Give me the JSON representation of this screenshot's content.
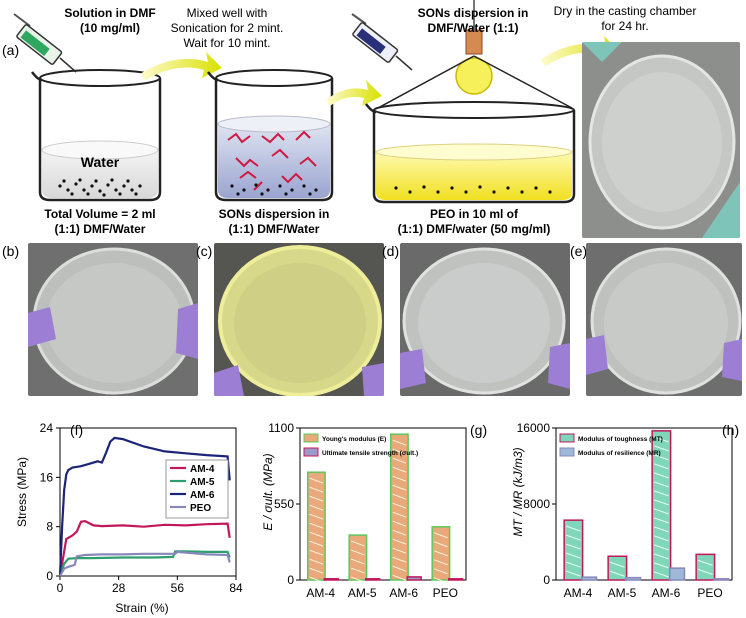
{
  "panel_labels": {
    "a": "(a)",
    "b": "(b)",
    "c": "(c)",
    "d": "(d)",
    "e": "(e)",
    "f": "(f)",
    "g": "(g)",
    "h": "(h)"
  },
  "scheme": {
    "step1_top": "Solution in DMF",
    "step1_conc": "(10 mg/ml)",
    "arrow1_text_1": "Mixed well with",
    "arrow1_text_2": "Sonication for 2 mint.",
    "arrow1_text_3": "Wait for 10 mint.",
    "step3_top_1": "SONs dispersion in",
    "step3_top_2": "DMF/Water (1:1)",
    "arrow3_text_1": "Dry in the casting chamber",
    "arrow3_text_2": "for 24 hr.",
    "beaker1_liquid": "Water",
    "beaker1_caption_1": "Total Volume = 2 ml",
    "beaker1_caption_2": "(1:1) DMF/Water",
    "beaker2_caption_1": "SONs dispersion in",
    "beaker2_caption_2": "(1:1) DMF/Water",
    "beaker3_caption_1": "PEO in 10 ml of",
    "beaker3_caption_2": "(1:1) DMF/water (50 mg/ml)"
  },
  "colors": {
    "am4": "#c2185b",
    "am5": "#2e9e6e",
    "am6": "#1a2478",
    "peo": "#8888bb",
    "young_fill": "#e9a97a",
    "young_edge": "#5ec85e",
    "uts_fill": "#9a9ac8",
    "uts_edge": "#c2185b",
    "tough_fill": "#7fd6b8",
    "tough_edge": "#c2185b",
    "resil_fill": "#9fb8d8",
    "resil_edge": "#8888bb"
  },
  "chart_data": [
    {
      "id": "f",
      "type": "line",
      "xlabel": "Strain (%)",
      "ylabel": "Stress (MPa)",
      "xlim": [
        0,
        84
      ],
      "ylim": [
        0,
        24
      ],
      "xticks": [
        "0",
        "28",
        "56",
        "84"
      ],
      "yticks": [
        "0",
        "8",
        "16",
        "24"
      ],
      "legend_position": "center-right",
      "series": [
        {
          "name": "AM-4",
          "color": "#c2185b",
          "x": [
            0,
            2,
            3,
            4,
            6,
            8,
            10,
            12,
            16,
            20,
            30,
            40,
            50,
            60,
            70,
            80,
            81
          ],
          "y": [
            0,
            4,
            6,
            6.2,
            6.6,
            7.2,
            8.8,
            8.9,
            8.2,
            8.1,
            8.2,
            8.0,
            8.3,
            8.2,
            8.4,
            8.5,
            6.2
          ]
        },
        {
          "name": "AM-5",
          "color": "#2e9e6e",
          "x": [
            0,
            2,
            4,
            8,
            15,
            30,
            45,
            54,
            55,
            60,
            70,
            80,
            81
          ],
          "y": [
            0,
            2.0,
            2.8,
            2.9,
            2.9,
            3.0,
            3.0,
            3.1,
            4.0,
            4.0,
            3.9,
            3.9,
            3.0
          ]
        },
        {
          "name": "AM-6",
          "color": "#1a2478",
          "x": [
            0,
            1,
            2,
            3,
            4,
            6,
            10,
            14,
            18,
            20,
            22,
            24,
            26,
            30,
            40,
            50,
            60,
            70,
            80,
            81
          ],
          "y": [
            0,
            8,
            14,
            16.5,
            17.2,
            17.6,
            17.8,
            18.2,
            18.6,
            18.4,
            20,
            21.8,
            22.4,
            22.2,
            21.0,
            20.2,
            19.9,
            19.6,
            19.4,
            15.5
          ]
        },
        {
          "name": "PEO",
          "color": "#8888bb",
          "x": [
            0,
            2,
            4,
            7,
            8,
            12,
            20,
            30,
            40,
            55,
            56,
            70,
            80,
            81
          ],
          "y": [
            0,
            1.2,
            1.5,
            1.8,
            3.2,
            3.4,
            3.5,
            3.5,
            3.6,
            3.6,
            3.9,
            3.5,
            3.4,
            2.2
          ]
        }
      ]
    },
    {
      "id": "g",
      "type": "bar",
      "ylabel": "E / σult. (MPa)",
      "ylim": [
        0,
        1100
      ],
      "yticks": [
        "0",
        "550",
        "1100"
      ],
      "categories": [
        "AM-4",
        "AM-5",
        "AM-6",
        "PEO"
      ],
      "legend_position": "top-left",
      "series": [
        {
          "name": "Young's modulus (E)",
          "values": [
            780,
            325,
            1055,
            385
          ]
        },
        {
          "name": "Ultimate tensile strength (σult.)",
          "values": [
            8.9,
            4.0,
            22.4,
            3.9
          ]
        }
      ]
    },
    {
      "id": "h",
      "type": "bar",
      "ylabel": "MT / MR (kJ/m3)",
      "ylim": [
        0,
        16000
      ],
      "yticks": [
        "0",
        "8000",
        "16000"
      ],
      "categories": [
        "AM-4",
        "AM-5",
        "AM-6",
        "PEO"
      ],
      "legend_position": "top-left",
      "series": [
        {
          "name": "Modulus of toughness (MT)",
          "values": [
            6300,
            2500,
            15700,
            2700
          ]
        },
        {
          "name": "Modulus of resilience (MR)",
          "values": [
            300,
            250,
            1250,
            80
          ]
        }
      ]
    }
  ]
}
